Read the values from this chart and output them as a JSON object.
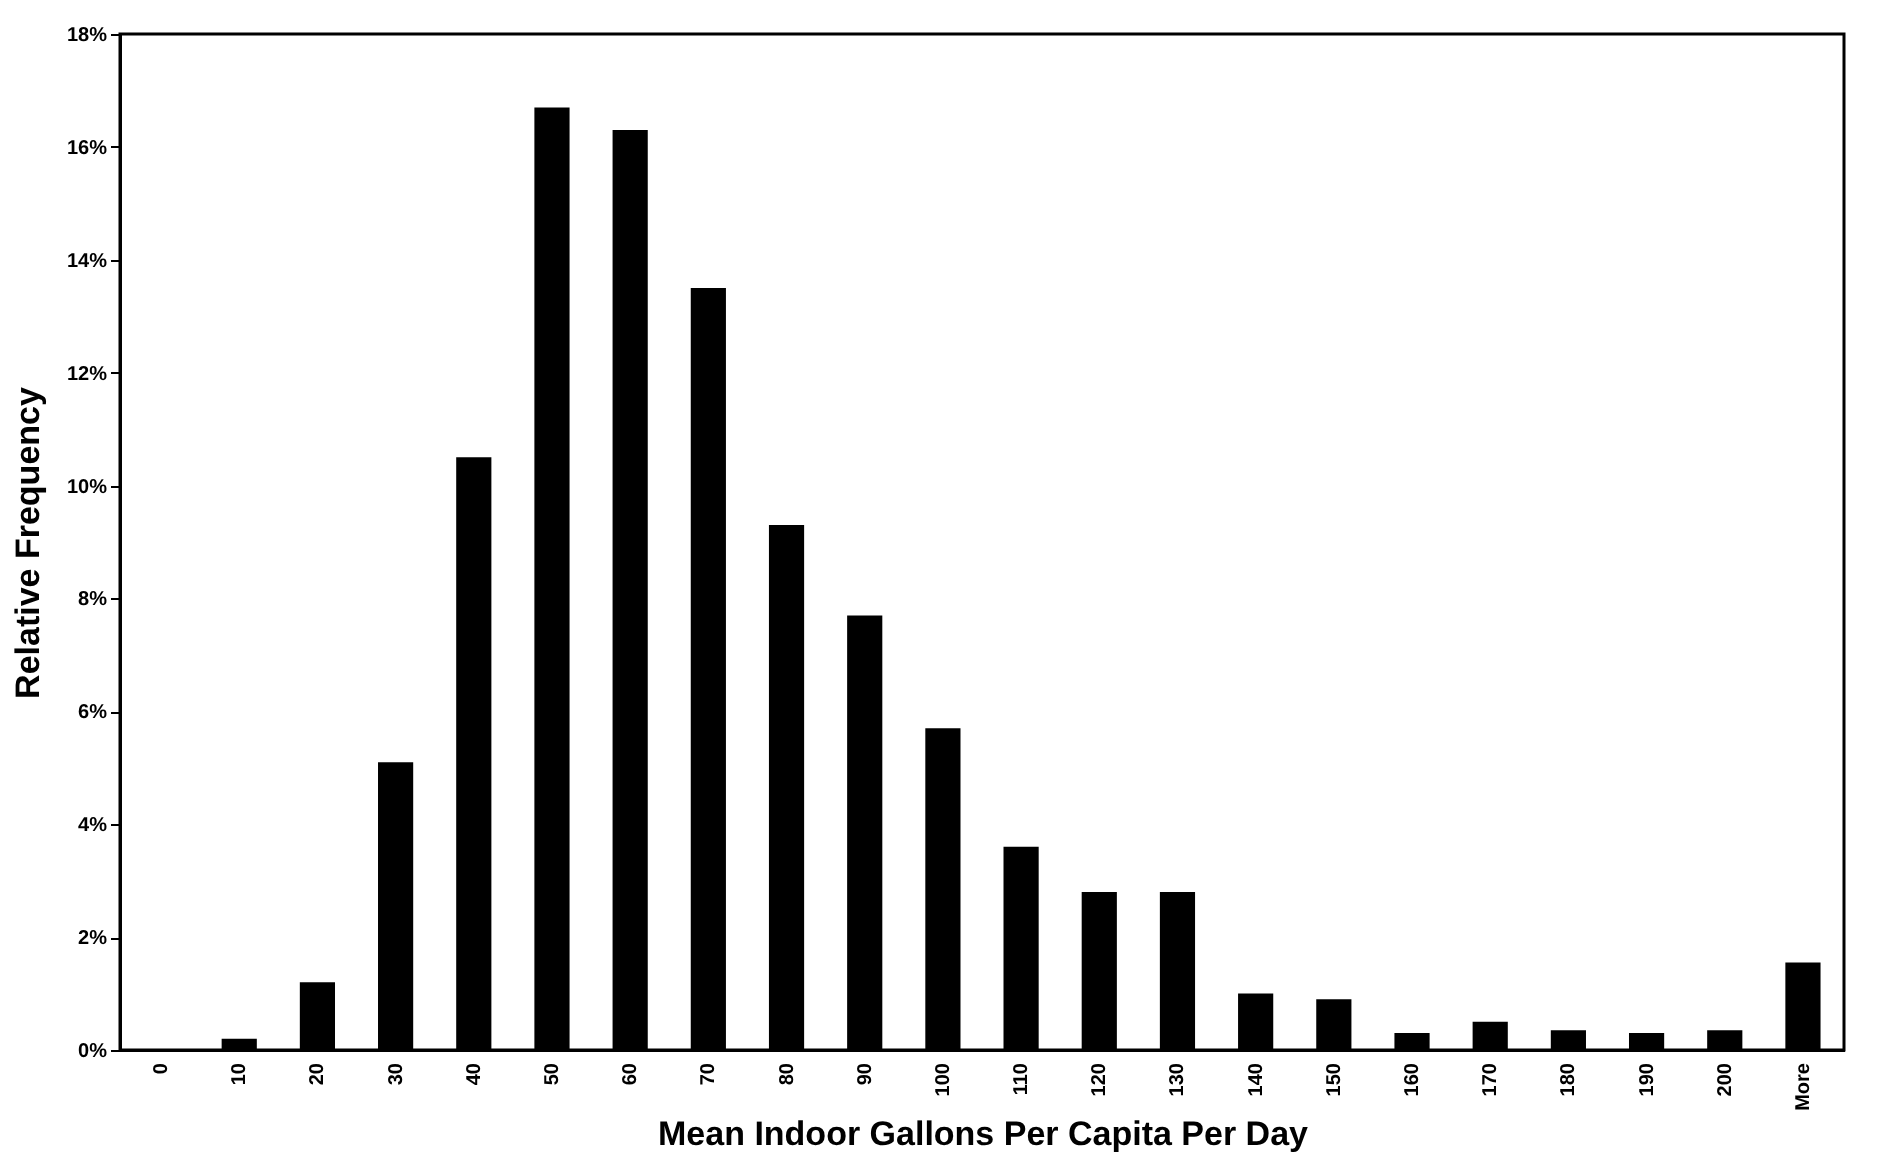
{
  "chart_data": {
    "type": "bar",
    "xlabel": "Mean Indoor Gallons Per Capita Per Day",
    "ylabel": "Relative Frequency",
    "categories": [
      "0",
      "10",
      "20",
      "30",
      "40",
      "50",
      "60",
      "70",
      "80",
      "90",
      "100",
      "110",
      "120",
      "130",
      "140",
      "150",
      "160",
      "170",
      "180",
      "190",
      "200",
      "More"
    ],
    "values": [
      0,
      0.2,
      1.2,
      5.1,
      10.5,
      16.7,
      16.3,
      13.5,
      9.3,
      7.7,
      5.7,
      3.6,
      2.8,
      2.8,
      1.0,
      0.9,
      0.3,
      0.5,
      0.35,
      0.3,
      0.35,
      1.55
    ],
    "color": "#000000",
    "ylim": [
      0,
      18
    ],
    "yticks": [
      {
        "value": 0,
        "label": "0%"
      },
      {
        "value": 2,
        "label": "2%"
      },
      {
        "value": 4,
        "label": "4%"
      },
      {
        "value": 6,
        "label": "6%"
      },
      {
        "value": 8,
        "label": "8%"
      },
      {
        "value": 10,
        "label": "10%"
      },
      {
        "value": 12,
        "label": "12%"
      },
      {
        "value": 14,
        "label": "14%"
      },
      {
        "value": 16,
        "label": "16%"
      },
      {
        "value": 18,
        "label": "18%"
      }
    ],
    "grid": false
  }
}
